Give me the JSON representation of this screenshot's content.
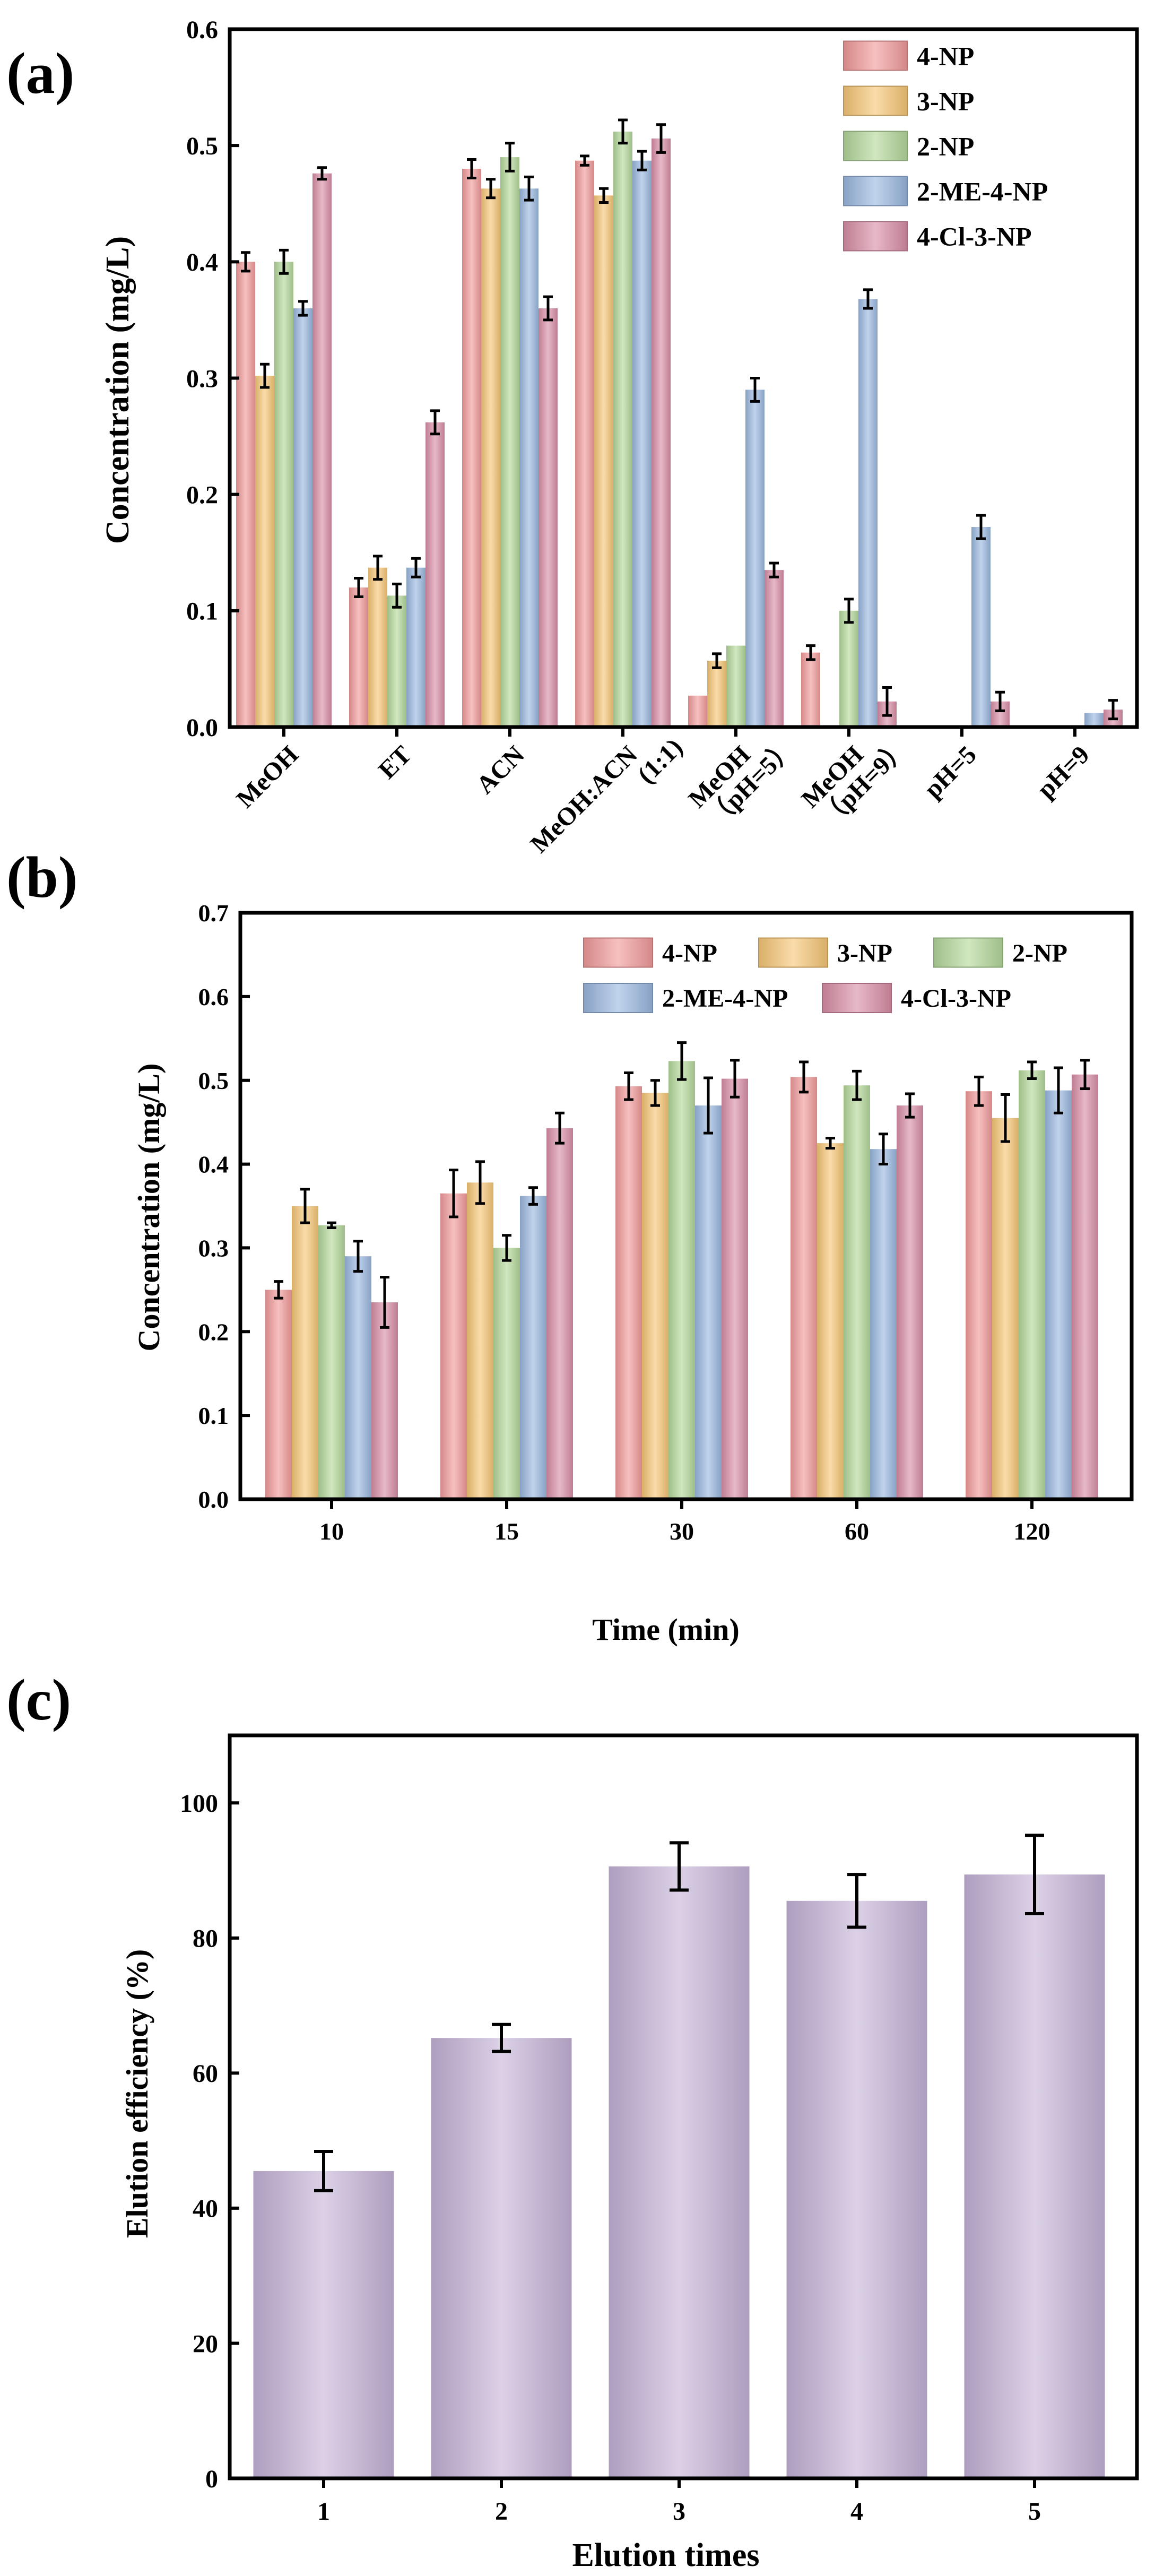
{
  "chart_data": [
    {
      "panel_label": "(a)",
      "type": "bar",
      "xlabel": "",
      "ylabel": "Concentration (mg/L)",
      "ylim": [
        0,
        0.6
      ],
      "yticks": [
        "0.0",
        "0.1",
        "0.2",
        "0.3",
        "0.4",
        "0.5",
        "0.6"
      ],
      "categories": [
        {
          "line1": "MeOH",
          "line2": ""
        },
        {
          "line1": "ET",
          "line2": ""
        },
        {
          "line1": "ACN",
          "line2": ""
        },
        {
          "line1": "MeOH:ACN",
          "line2": "(1:1)"
        },
        {
          "line1": "MeOH",
          "line2": "（pH=5）"
        },
        {
          "line1": "MeOH",
          "line2": "（pH=9）"
        },
        {
          "line1": "pH=5",
          "line2": ""
        },
        {
          "line1": "pH=9",
          "line2": ""
        }
      ],
      "legend_position": "top-right",
      "series": [
        {
          "name": "4-NP",
          "values": [
            0.4,
            0.12,
            0.48,
            0.487,
            0.027,
            0.064,
            null,
            null
          ],
          "errors": [
            0.008,
            0.008,
            0.008,
            0.004,
            0,
            0.006,
            null,
            null
          ]
        },
        {
          "name": "3-NP",
          "values": [
            0.302,
            0.137,
            0.463,
            0.457,
            0.057,
            null,
            null,
            null
          ],
          "errors": [
            0.01,
            0.01,
            0.008,
            0.006,
            0.006,
            null,
            null,
            null
          ]
        },
        {
          "name": "2-NP",
          "values": [
            0.4,
            0.113,
            0.49,
            0.512,
            0.07,
            0.1,
            null,
            null
          ],
          "errors": [
            0.01,
            0.01,
            0.012,
            0.01,
            0,
            0.01,
            null,
            null
          ]
        },
        {
          "name": "2-ME-4-NP",
          "values": [
            0.36,
            0.137,
            0.463,
            0.487,
            0.29,
            0.368,
            0.172,
            0.012
          ],
          "errors": [
            0.006,
            0.008,
            0.01,
            0.008,
            0.01,
            0.008,
            0.01,
            0
          ]
        },
        {
          "name": "4-Cl-3-NP",
          "values": [
            0.476,
            0.262,
            0.36,
            0.506,
            0.135,
            0.022,
            0.022,
            0.015
          ],
          "errors": [
            0.005,
            0.01,
            0.01,
            0.012,
            0.006,
            0.012,
            0.008,
            0.008
          ]
        }
      ]
    },
    {
      "panel_label": "(b)",
      "type": "bar",
      "xlabel": "Time (min)",
      "ylabel": "Concentration (mg/L)",
      "ylim": [
        0,
        0.7
      ],
      "yticks": [
        "0.0",
        "0.1",
        "0.2",
        "0.3",
        "0.4",
        "0.5",
        "0.6",
        "0.7"
      ],
      "categories": [
        "10",
        "15",
        "30",
        "60",
        "120"
      ],
      "legend_position": "top-right",
      "series": [
        {
          "name": "4-NP",
          "values": [
            0.25,
            0.365,
            0.493,
            0.504,
            0.487
          ],
          "errors": [
            0.01,
            0.028,
            0.016,
            0.018,
            0.017
          ]
        },
        {
          "name": "3-NP",
          "values": [
            0.35,
            0.378,
            0.485,
            0.425,
            0.455
          ],
          "errors": [
            0.02,
            0.025,
            0.015,
            0.006,
            0.028
          ]
        },
        {
          "name": "2-NP",
          "values": [
            0.327,
            0.3,
            0.523,
            0.494,
            0.512
          ],
          "errors": [
            0.003,
            0.015,
            0.022,
            0.017,
            0.01
          ]
        },
        {
          "name": "2-ME-4-NP",
          "values": [
            0.29,
            0.362,
            0.47,
            0.418,
            0.488
          ],
          "errors": [
            0.018,
            0.01,
            0.033,
            0.018,
            0.027
          ]
        },
        {
          "name": "4-Cl-3-NP",
          "values": [
            0.235,
            0.443,
            0.502,
            0.47,
            0.507
          ],
          "errors": [
            0.03,
            0.018,
            0.022,
            0.014,
            0.017
          ]
        }
      ]
    },
    {
      "panel_label": "(c)",
      "type": "bar",
      "xlabel": "Elution times",
      "ylabel": "Elution efficiency (%)",
      "ylim": [
        0,
        110
      ],
      "yticks": [
        "0",
        "20",
        "40",
        "60",
        "80",
        "100"
      ],
      "categories": [
        "1",
        "2",
        "3",
        "4",
        "5"
      ],
      "series": [
        {
          "name": "Elution efficiency",
          "values": [
            45.5,
            65.2,
            90.6,
            85.5,
            89.4
          ],
          "errors": [
            2.9,
            2.0,
            3.5,
            3.9,
            5.8
          ]
        }
      ]
    }
  ],
  "colors": {
    "4-NP": "#f29a9a",
    "3-NP": "#f7c776",
    "2-NP": "#b4d89a",
    "2-ME-4-NP": "#9ab8e0",
    "4-Cl-3-NP": "#d98ea6",
    "elution": "#c6b4d9"
  }
}
